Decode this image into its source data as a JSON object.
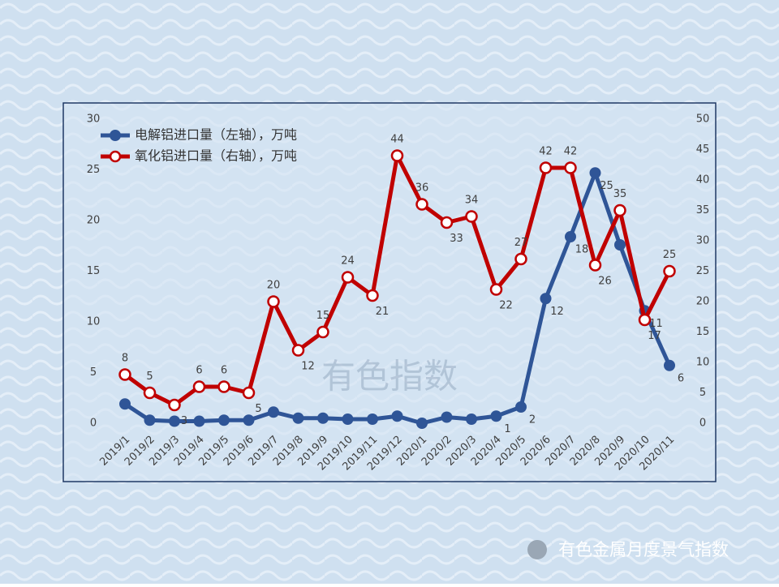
{
  "chart_data": {
    "type": "line",
    "categories": [
      "2019/1",
      "2019/2",
      "2019/3",
      "2019/4",
      "2019/5",
      "2019/6",
      "2019/7",
      "2019/8",
      "2019/9",
      "2019/10",
      "2019/11",
      "2019/12",
      "2020/1",
      "2020/2",
      "2020/3",
      "2020/4",
      "2020/5",
      "2020/6",
      "2020/7",
      "2020/8",
      "2020/9",
      "2020/10",
      "2020/11"
    ],
    "series": [
      {
        "name": "电解铝进口量（左轴），万吨",
        "color": "#2f5597",
        "axis": "y",
        "values": [
          1.9,
          0.3,
          0.2,
          0.2,
          0.3,
          0.3,
          1.1,
          0.5,
          0.5,
          0.4,
          0.4,
          0.7,
          0.0,
          0.6,
          0.4,
          0.7,
          1.6,
          12.3,
          18.4,
          24.7,
          17.6,
          11.1,
          5.7
        ],
        "value_labels": [
          null,
          null,
          null,
          null,
          null,
          null,
          null,
          null,
          null,
          null,
          null,
          null,
          null,
          null,
          null,
          "1",
          "2",
          "12",
          "18",
          "25",
          null,
          "11",
          "6"
        ]
      },
      {
        "name": "氧化铝进口量（右轴），万吨",
        "color": "#c00000",
        "axis": "y2",
        "values": [
          8,
          5,
          3,
          6,
          6,
          5,
          20,
          12,
          15,
          24,
          21,
          44,
          36,
          33,
          34,
          22,
          27,
          42,
          42,
          26,
          35,
          17,
          25
        ]
      }
    ],
    "ylim": [
      0,
      30
    ],
    "yticks": [
      0,
      5,
      10,
      15,
      20,
      25,
      30
    ],
    "y2lim": [
      0,
      50
    ],
    "y2ticks": [
      0,
      5,
      10,
      15,
      20,
      25,
      30,
      35,
      40,
      45,
      50
    ],
    "legend": "top-left",
    "watermark": "有色指数",
    "footer": "有色金属月度景气指数"
  }
}
